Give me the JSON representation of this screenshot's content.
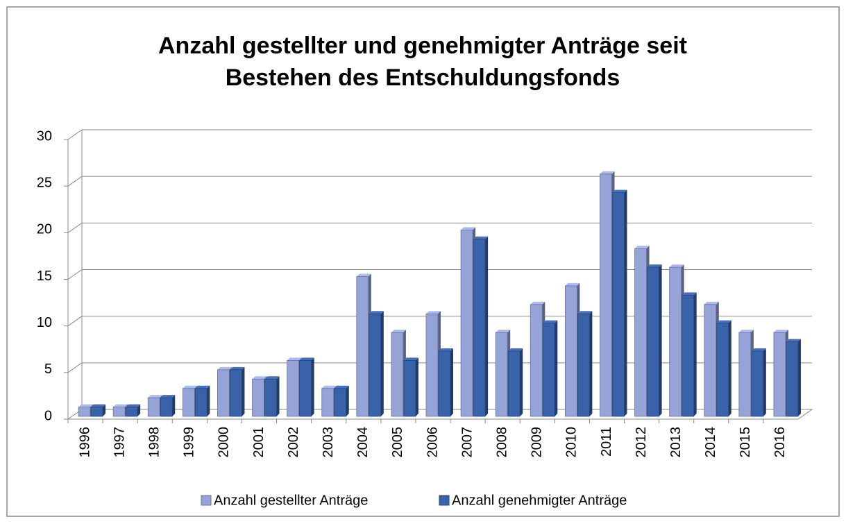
{
  "chart_data": {
    "type": "bar",
    "title": [
      "Anzahl gestellter und genehmigter Anträge seit",
      "Bestehen des Entschuldungsfonds"
    ],
    "categories": [
      "1996",
      "1997",
      "1998",
      "1999",
      "2000",
      "2001",
      "2002",
      "2003",
      "2004",
      "2005",
      "2006",
      "2007",
      "2008",
      "2009",
      "2010",
      "2011",
      "2012",
      "2013",
      "2014",
      "2015",
      "2016"
    ],
    "series": [
      {
        "name": "Anzahl gestellter Anträge",
        "color": "#95a3d6",
        "values": [
          1,
          1,
          2,
          3,
          5,
          4,
          6,
          3,
          15,
          9,
          11,
          20,
          9,
          12,
          14,
          26,
          18,
          16,
          12,
          9,
          9
        ]
      },
      {
        "name": "Anzahl genehmigter Anträge",
        "color": "#3a62a8",
        "values": [
          1,
          1,
          2,
          3,
          5,
          4,
          6,
          3,
          11,
          6,
          7,
          19,
          7,
          10,
          11,
          24,
          16,
          13,
          10,
          7,
          8
        ]
      }
    ],
    "ylim": [
      0,
      30
    ],
    "yticks": [
      0,
      5,
      10,
      15,
      20,
      25,
      30
    ],
    "grid": true,
    "legend": "bottom"
  }
}
